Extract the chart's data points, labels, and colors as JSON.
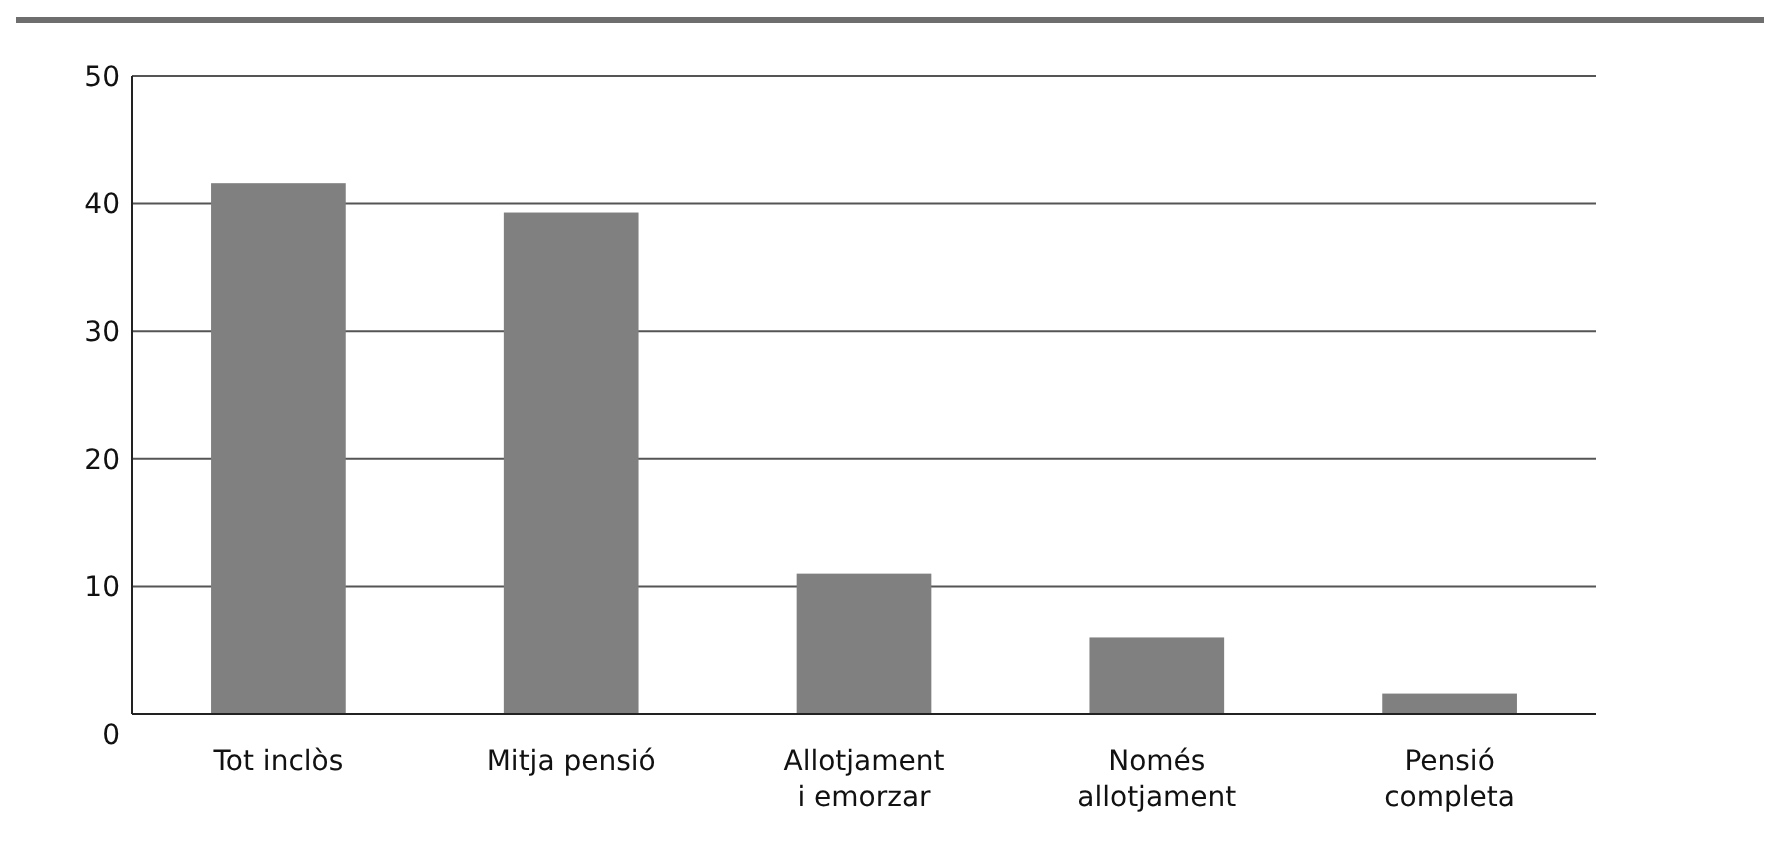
{
  "chart_data": {
    "type": "bar",
    "categories": [
      "Tot inclòs",
      "Mitja pensió",
      "Allotjament i emorzar",
      "Només allotjament",
      "Pensió completa"
    ],
    "values": [
      41.6,
      39.3,
      11.0,
      6.0,
      1.6
    ],
    "color": "#808080",
    "ylim": [
      0,
      50
    ],
    "yticks": [
      0,
      10,
      20,
      30,
      40,
      50
    ],
    "grid": "y"
  }
}
